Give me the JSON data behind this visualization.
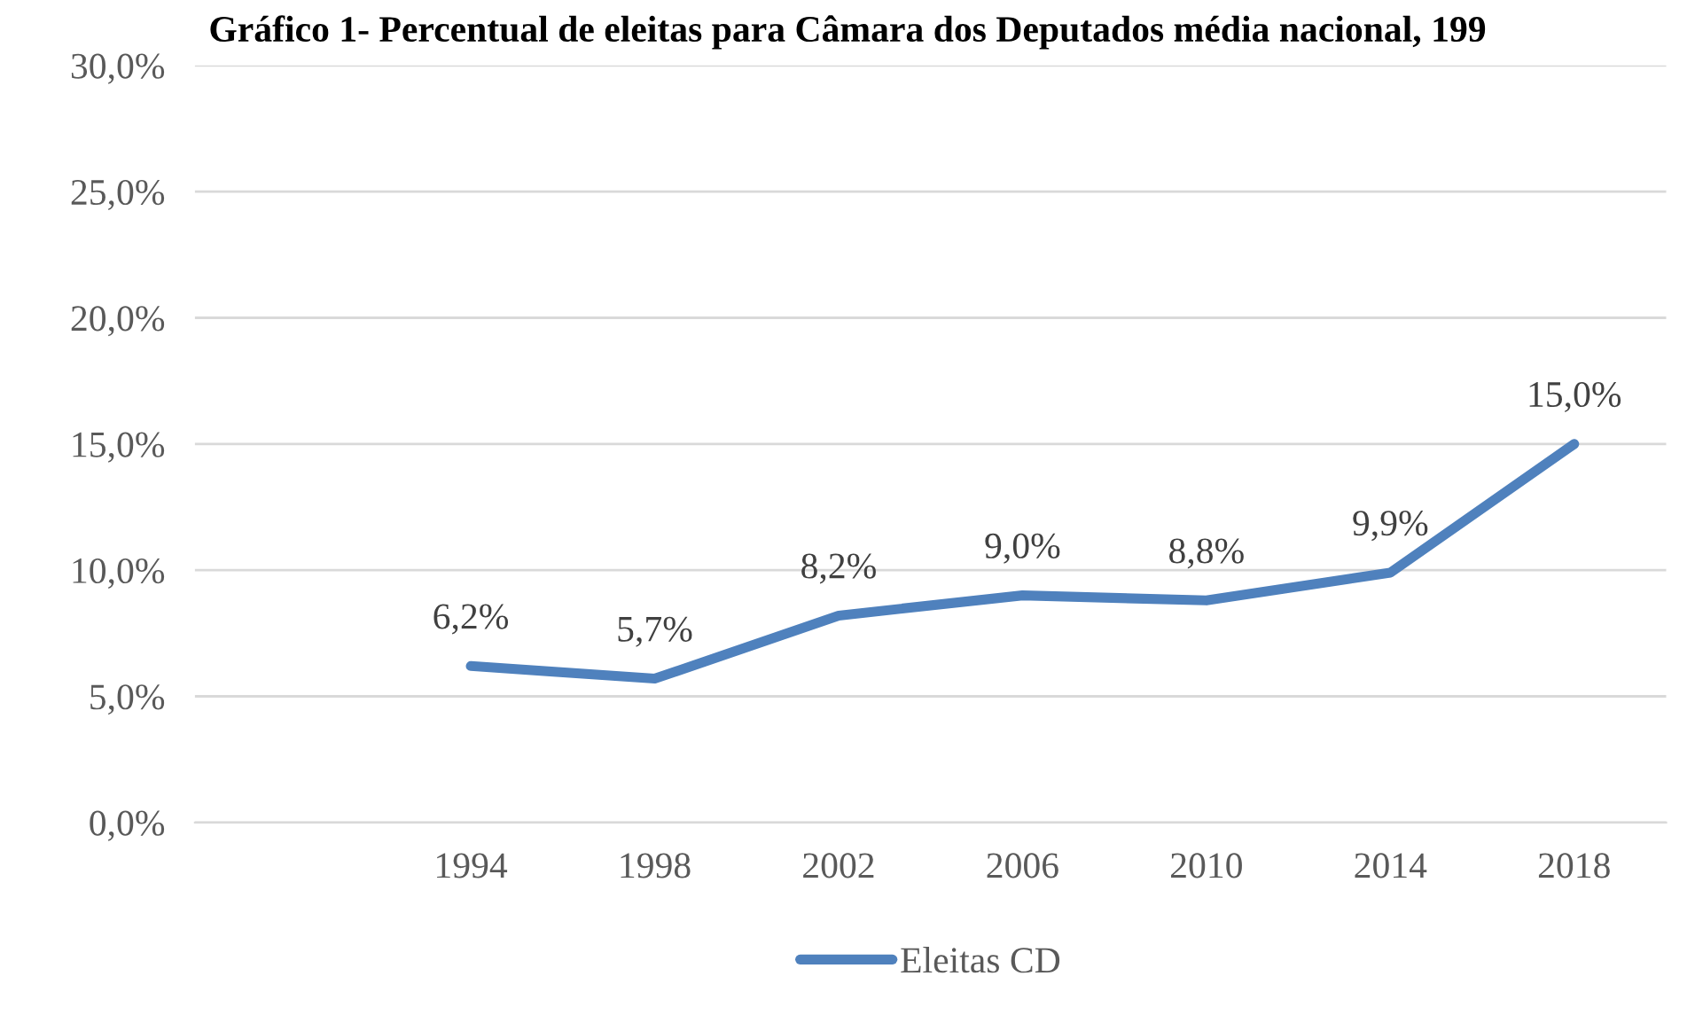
{
  "chart_data": {
    "type": "line",
    "title": "Gráfico 1- Percentual de eleitas para Câmara dos Deputados média nacional, 199",
    "categories": [
      null,
      "1994",
      "1998",
      "2002",
      "2006",
      "2010",
      "2014",
      "2018"
    ],
    "series": [
      {
        "name": "Eleitas CD",
        "color": "#4f81bd",
        "values": [
          null,
          6.2,
          5.7,
          8.2,
          9.0,
          8.8,
          9.9,
          15.0
        ],
        "value_labels": [
          null,
          "6,2%",
          "5,7%",
          "8,2%",
          "9,0%",
          "8,8%",
          "9,9%",
          "15,0%"
        ]
      }
    ],
    "ylim": [
      0,
      30
    ],
    "yticks": [
      {
        "value": 0,
        "label": "0,0%"
      },
      {
        "value": 5,
        "label": "5,0%"
      },
      {
        "value": 10,
        "label": "10,0%"
      },
      {
        "value": 15,
        "label": "15,0%"
      },
      {
        "value": 20,
        "label": "20,0%"
      },
      {
        "value": 25,
        "label": "25,0%"
      },
      {
        "value": 30,
        "label": "30,0%"
      }
    ],
    "grid": "y",
    "legend": "bottom",
    "marker": "none",
    "line_style": "solid"
  }
}
